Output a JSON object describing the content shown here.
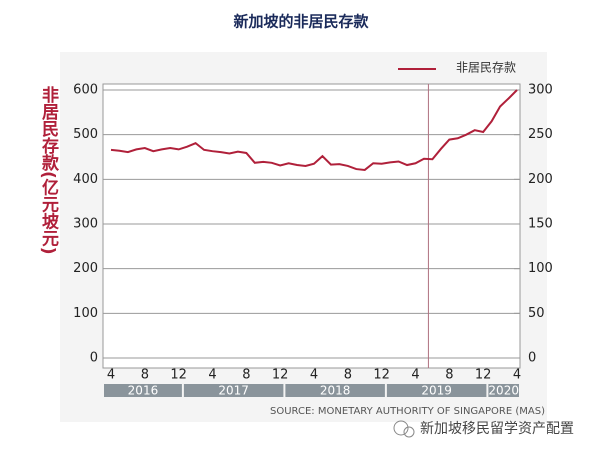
{
  "chart_data": {
    "type": "line",
    "title": "新加坡的非居民存款",
    "y_label": "非居民存款(亿元坡元)",
    "source": "SOURCE: MONETARY AUTHORITY OF SINGAPORE (MAS)",
    "watermark": "新加坡移民留学资产配置",
    "categories": [
      "4",
      null,
      null,
      null,
      "8",
      null,
      null,
      null,
      "12",
      null,
      null,
      null,
      "4",
      null,
      null,
      null,
      "8",
      null,
      null,
      null,
      "12",
      null,
      null,
      null,
      "4",
      null,
      null,
      null,
      "8",
      null,
      null,
      null,
      "12",
      null,
      null,
      null,
      "4",
      null,
      null,
      null,
      "8",
      null,
      null,
      null,
      "12",
      null,
      null,
      null,
      "4"
    ],
    "years": [
      "2016",
      "2017",
      "2018",
      "2019",
      "2020"
    ],
    "series": [
      {
        "name": "非居民存款",
        "color": "#b0203a",
        "values": [
          466,
          464,
          461,
          467,
          470,
          463,
          467,
          470,
          467,
          473,
          481,
          466,
          463,
          461,
          458,
          462,
          459,
          437,
          439,
          437,
          431,
          436,
          432,
          430,
          435,
          452,
          433,
          434,
          430,
          423,
          421,
          436,
          435,
          438,
          440,
          432,
          436,
          446,
          445,
          468,
          489,
          492,
          500,
          510,
          506,
          530,
          563,
          581,
          600
        ]
      }
    ],
    "ylim": [
      0,
      600
    ],
    "yticks": [
      0,
      100,
      200,
      300,
      400,
      500,
      600
    ],
    "y2lim": [
      0,
      300
    ],
    "y2ticks": [
      0,
      50,
      100,
      150,
      200,
      250,
      300
    ],
    "grid": true
  }
}
